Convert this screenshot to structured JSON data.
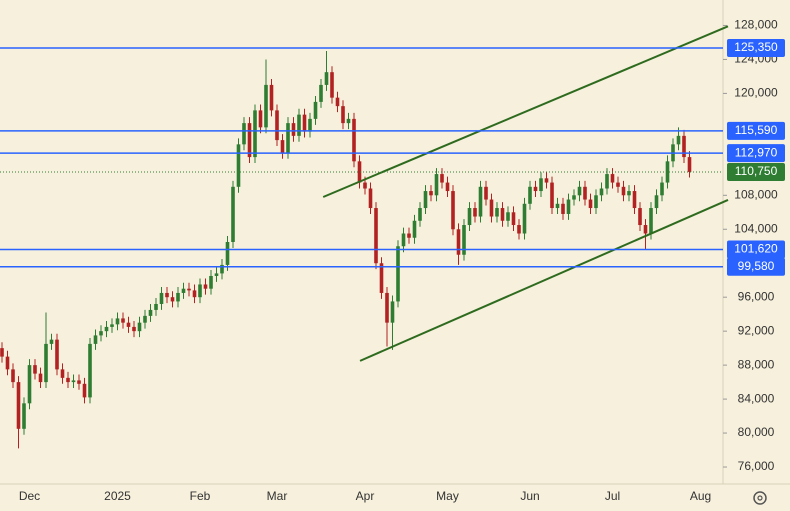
{
  "chart_data": {
    "type": "candlestick",
    "categories": [
      null,
      null,
      null,
      null,
      null,
      "Dec",
      null,
      null,
      null,
      null,
      null,
      null,
      null,
      null,
      null,
      null,
      null,
      null,
      null,
      null,
      null,
      "2025",
      null,
      null,
      null,
      null,
      null,
      null,
      null,
      null,
      null,
      null,
      null,
      null,
      null,
      null,
      "Feb",
      null,
      null,
      null,
      null,
      null,
      null,
      null,
      null,
      null,
      null,
      null,
      null,
      null,
      "Mar",
      null,
      null,
      null,
      null,
      null,
      null,
      null,
      null,
      null,
      null,
      null,
      null,
      null,
      null,
      null,
      "Apr",
      null,
      null,
      null,
      null,
      null,
      null,
      null,
      null,
      null,
      null,
      null,
      null,
      null,
      null,
      "May",
      null,
      null,
      null,
      null,
      null,
      null,
      null,
      null,
      null,
      null,
      null,
      null,
      null,
      null,
      "Jun",
      null,
      null,
      null,
      null,
      null,
      null,
      null,
      null,
      null,
      null,
      null,
      null,
      null,
      null,
      "Jul",
      null,
      null,
      null,
      null,
      null,
      null,
      null,
      null,
      null,
      null,
      null,
      null,
      null,
      null,
      null,
      "Aug"
    ],
    "open": [
      90000,
      89000,
      87500,
      86000,
      80500,
      83500,
      88000,
      87000,
      86000,
      90500,
      91000,
      87500,
      86500,
      86000,
      86200,
      85800,
      84200,
      90500,
      91500,
      92000,
      92500,
      92800,
      93500,
      93000,
      92500,
      92000,
      93000,
      93800,
      94500,
      95200,
      96500,
      96000,
      95500,
      96500,
      97000,
      96800,
      96000,
      97500,
      97000,
      98500,
      98800,
      99800,
      102500,
      109000,
      114000,
      116500,
      112500,
      118000,
      116000,
      121000,
      118000,
      114500,
      113000,
      116500,
      115000,
      117500,
      115500,
      117000,
      119000,
      121000,
      122500,
      119500,
      118500,
      116500,
      117000,
      112000,
      109500,
      108800,
      106500,
      100000,
      96500,
      93000,
      95500,
      102000,
      103500,
      103000,
      105000,
      106500,
      108500,
      108000,
      110500,
      109500,
      108500,
      104000,
      101000,
      104500,
      106500,
      105500,
      109000,
      107500,
      105500,
      106500,
      105000,
      106000,
      104500,
      103500,
      107000,
      109000,
      108500,
      110000,
      109500,
      106500,
      107000,
      105800,
      107500,
      108000,
      109000,
      107500,
      106500,
      108000,
      108800,
      110500,
      109500,
      109000,
      108000,
      108500,
      106500,
      104500,
      103500,
      106500,
      108000,
      109500,
      112000,
      114000,
      115000,
      112500,
      null,
      null
    ],
    "high": [
      90700,
      89700,
      88200,
      86700,
      84200,
      88700,
      88700,
      87700,
      94200,
      91700,
      91700,
      88200,
      87200,
      86900,
      86900,
      86500,
      91200,
      92200,
      92700,
      93200,
      93500,
      94200,
      94200,
      93700,
      93200,
      93700,
      94500,
      95200,
      95900,
      97200,
      97200,
      96700,
      97200,
      97700,
      97700,
      97500,
      98200,
      98200,
      99200,
      99500,
      100500,
      103200,
      109700,
      114700,
      117200,
      117200,
      118700,
      118700,
      124000,
      121700,
      118700,
      115200,
      117200,
      117200,
      118200,
      118200,
      117700,
      119700,
      121700,
      125000,
      123200,
      120200,
      119200,
      117700,
      117700,
      112700,
      110200,
      109500,
      107200,
      100700,
      97200,
      96200,
      102700,
      104200,
      104200,
      105700,
      107200,
      109200,
      109200,
      111200,
      111200,
      110200,
      109200,
      104700,
      105200,
      107200,
      107200,
      109700,
      109700,
      108200,
      107200,
      107200,
      106700,
      106700,
      105200,
      107700,
      109700,
      109700,
      110700,
      110700,
      110200,
      107700,
      107700,
      108200,
      108700,
      109700,
      109700,
      108200,
      108700,
      109500,
      111200,
      111200,
      110200,
      109700,
      109200,
      109200,
      107200,
      105200,
      107200,
      108700,
      110200,
      112700,
      114700,
      116000,
      115700,
      113200,
      null,
      null
    ],
    "low": [
      88300,
      86800,
      85300,
      78200,
      79800,
      82800,
      86300,
      85300,
      85300,
      89800,
      86800,
      85800,
      85300,
      85300,
      85100,
      83500,
      83500,
      89800,
      90800,
      91300,
      91800,
      92100,
      92300,
      91800,
      91300,
      91300,
      92300,
      93100,
      93800,
      94500,
      95300,
      94800,
      94800,
      95800,
      96100,
      95300,
      95300,
      96300,
      96300,
      97800,
      98100,
      99100,
      101800,
      108300,
      113300,
      111800,
      111800,
      115300,
      115300,
      117300,
      113800,
      112300,
      112300,
      114300,
      114300,
      114800,
      114800,
      116300,
      118300,
      120300,
      118800,
      117800,
      115800,
      115800,
      111300,
      108800,
      108100,
      105800,
      99300,
      95800,
      90200,
      89800,
      94800,
      101300,
      102300,
      102300,
      104300,
      105800,
      107300,
      107300,
      108800,
      107800,
      103300,
      99800,
      100300,
      103800,
      104800,
      104800,
      106800,
      104800,
      104800,
      104300,
      104300,
      103800,
      102800,
      102800,
      106300,
      107800,
      107800,
      108800,
      105800,
      105800,
      105100,
      105100,
      106800,
      107300,
      106800,
      105800,
      105800,
      107300,
      108100,
      108800,
      108300,
      107300,
      107300,
      105800,
      103800,
      101600,
      102800,
      105800,
      107300,
      108800,
      111300,
      113300,
      111800,
      110100,
      null,
      null
    ],
    "close": [
      89000,
      87500,
      86000,
      80500,
      83500,
      88000,
      87000,
      86000,
      90500,
      91000,
      87500,
      86500,
      86000,
      86200,
      85800,
      84200,
      90500,
      91500,
      92000,
      92500,
      92800,
      93500,
      93000,
      92500,
      92000,
      93000,
      93800,
      94500,
      95200,
      96500,
      96000,
      95500,
      96500,
      97000,
      96800,
      96000,
      97500,
      97000,
      98500,
      98800,
      99800,
      102500,
      109000,
      114000,
      116500,
      112500,
      118000,
      116000,
      121000,
      118000,
      114500,
      113000,
      116500,
      115000,
      117500,
      115500,
      117000,
      119000,
      121000,
      122500,
      119500,
      118500,
      116500,
      117000,
      112000,
      109500,
      108800,
      106500,
      100000,
      96500,
      93000,
      95500,
      102000,
      103500,
      103000,
      105000,
      106500,
      108500,
      108000,
      110500,
      109500,
      108500,
      104000,
      101000,
      104500,
      106500,
      105500,
      109000,
      107500,
      105500,
      106500,
      105000,
      106000,
      104500,
      103500,
      107000,
      109000,
      108500,
      110000,
      109500,
      106500,
      107000,
      105800,
      107500,
      108000,
      109000,
      107500,
      106500,
      108000,
      108800,
      110500,
      109500,
      109000,
      108000,
      108500,
      106500,
      104500,
      103500,
      106500,
      108000,
      109500,
      112000,
      114000,
      115000,
      112500,
      110750,
      null,
      null
    ],
    "up_color": "#2e7d32",
    "down_color": "#b22222",
    "ylim": [
      74000,
      131000
    ],
    "yticks": [
      {
        "value": 76000,
        "label": "76,000"
      },
      {
        "value": 80000,
        "label": "80,000"
      },
      {
        "value": 84000,
        "label": "84,000"
      },
      {
        "value": 88000,
        "label": "88,000"
      },
      {
        "value": 92000,
        "label": "92,000"
      },
      {
        "value": 96000,
        "label": "96,000"
      },
      {
        "value": 104000,
        "label": "104,000"
      },
      {
        "value": 108000,
        "label": "108,000"
      },
      {
        "value": 120000,
        "label": "120,000"
      },
      {
        "value": 124000,
        "label": "124,000"
      },
      {
        "value": 128000,
        "label": "128,000"
      }
    ],
    "levels": [
      {
        "value": 125350,
        "label": "125,350"
      },
      {
        "value": 115590,
        "label": "115,590"
      },
      {
        "value": 112970,
        "label": "112,970"
      },
      {
        "value": 101620,
        "label": "101,620"
      },
      {
        "value": 99580,
        "label": "99,580"
      }
    ],
    "level_color": "#2962ff",
    "last_price": {
      "value": 110750,
      "label": "110,750"
    },
    "last_color": "#2e7d32",
    "trend_lines": [
      {
        "x": [
          58.4,
          132
        ],
        "y": [
          107800,
          127900
        ]
      },
      {
        "x": [
          65.1,
          132
        ],
        "y": [
          88500,
          107450
        ]
      }
    ],
    "trend_color": "#2e6b1f"
  }
}
